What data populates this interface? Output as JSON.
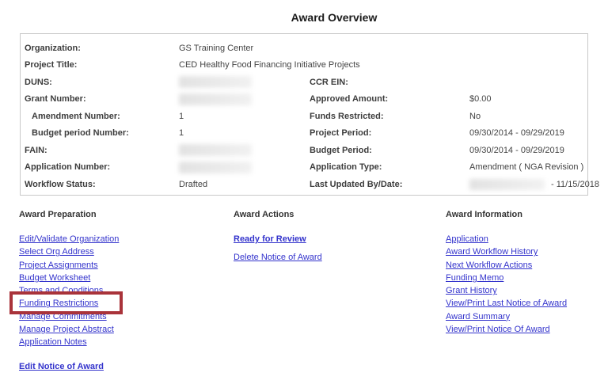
{
  "page": {
    "title": "Award Overview"
  },
  "colors": {
    "accent_red": "#a9333a",
    "link_blue": "#3333cc",
    "table_border": "#c9c9c9",
    "label_text": "#3d3d3d",
    "heading_text": "#333333",
    "title_text": "#1b1b1b"
  },
  "overview": {
    "left_rows": [
      {
        "label": "Organization:",
        "value": "GS Training Center"
      },
      {
        "label": "Project Title:",
        "value": "CED Healthy Food Financing Initiative Projects"
      },
      {
        "label": "DUNS:",
        "value": "",
        "value_redacted": true
      },
      {
        "label": "Grant Number:",
        "value": "",
        "value_redacted": true
      },
      {
        "label": "Amendment Number:",
        "value": "1",
        "indent": true
      },
      {
        "label": "Budget period Number:",
        "value": "1",
        "indent": true
      },
      {
        "label": "FAIN:",
        "value": "",
        "value_redacted": true
      },
      {
        "label": "Application Number:",
        "value": "",
        "value_redacted": true
      },
      {
        "label": "Workflow Status:",
        "value": "Drafted"
      }
    ],
    "right_rows": [
      {
        "label": "CCR EIN:",
        "value": ""
      },
      {
        "label": "Approved Amount:",
        "value": "$0.00"
      },
      {
        "label": "Funds Restricted:",
        "value": "No"
      },
      {
        "label": "Project Period:",
        "value": "09/30/2014 - 09/29/2019"
      },
      {
        "label": "Budget Period:",
        "value": "09/30/2014 - 09/29/2019"
      },
      {
        "label": "Application Type:",
        "value": "Amendment ( NGA Revision )"
      },
      {
        "label": "Last Updated By/Date:",
        "value": "- 11/15/2018",
        "value_prefix_redacted": true
      }
    ]
  },
  "sections": [
    {
      "heading": "Award Preparation",
      "links": [
        {
          "label": "Edit/Validate Organization"
        },
        {
          "label": "Select Org Address"
        },
        {
          "label": "Project Assignments"
        },
        {
          "label": "Budget Worksheet"
        },
        {
          "label": "Terms and Conditions"
        },
        {
          "label": "Funding Restrictions",
          "highlighted": true
        },
        {
          "label": "Manage Commitments"
        },
        {
          "label": "Manage Project Abstract"
        },
        {
          "label": "Application Notes"
        },
        {
          "label": "Edit Notice of Award",
          "bold": true,
          "gap_before": true
        }
      ]
    },
    {
      "heading": "Award Actions",
      "links": [
        {
          "label": "Ready for Review",
          "bold": true
        },
        {
          "label": "Delete Notice of Award"
        }
      ]
    },
    {
      "heading": "Award Information",
      "links": [
        {
          "label": "Application"
        },
        {
          "label": "Award Workflow History"
        },
        {
          "label": "Next Workflow Actions"
        },
        {
          "label": "Funding Memo"
        },
        {
          "label": "Grant History"
        },
        {
          "label": "View/Print Last Notice of Award"
        },
        {
          "label": "Award Summary"
        },
        {
          "label": "View/Print Notice Of Award"
        }
      ]
    }
  ]
}
